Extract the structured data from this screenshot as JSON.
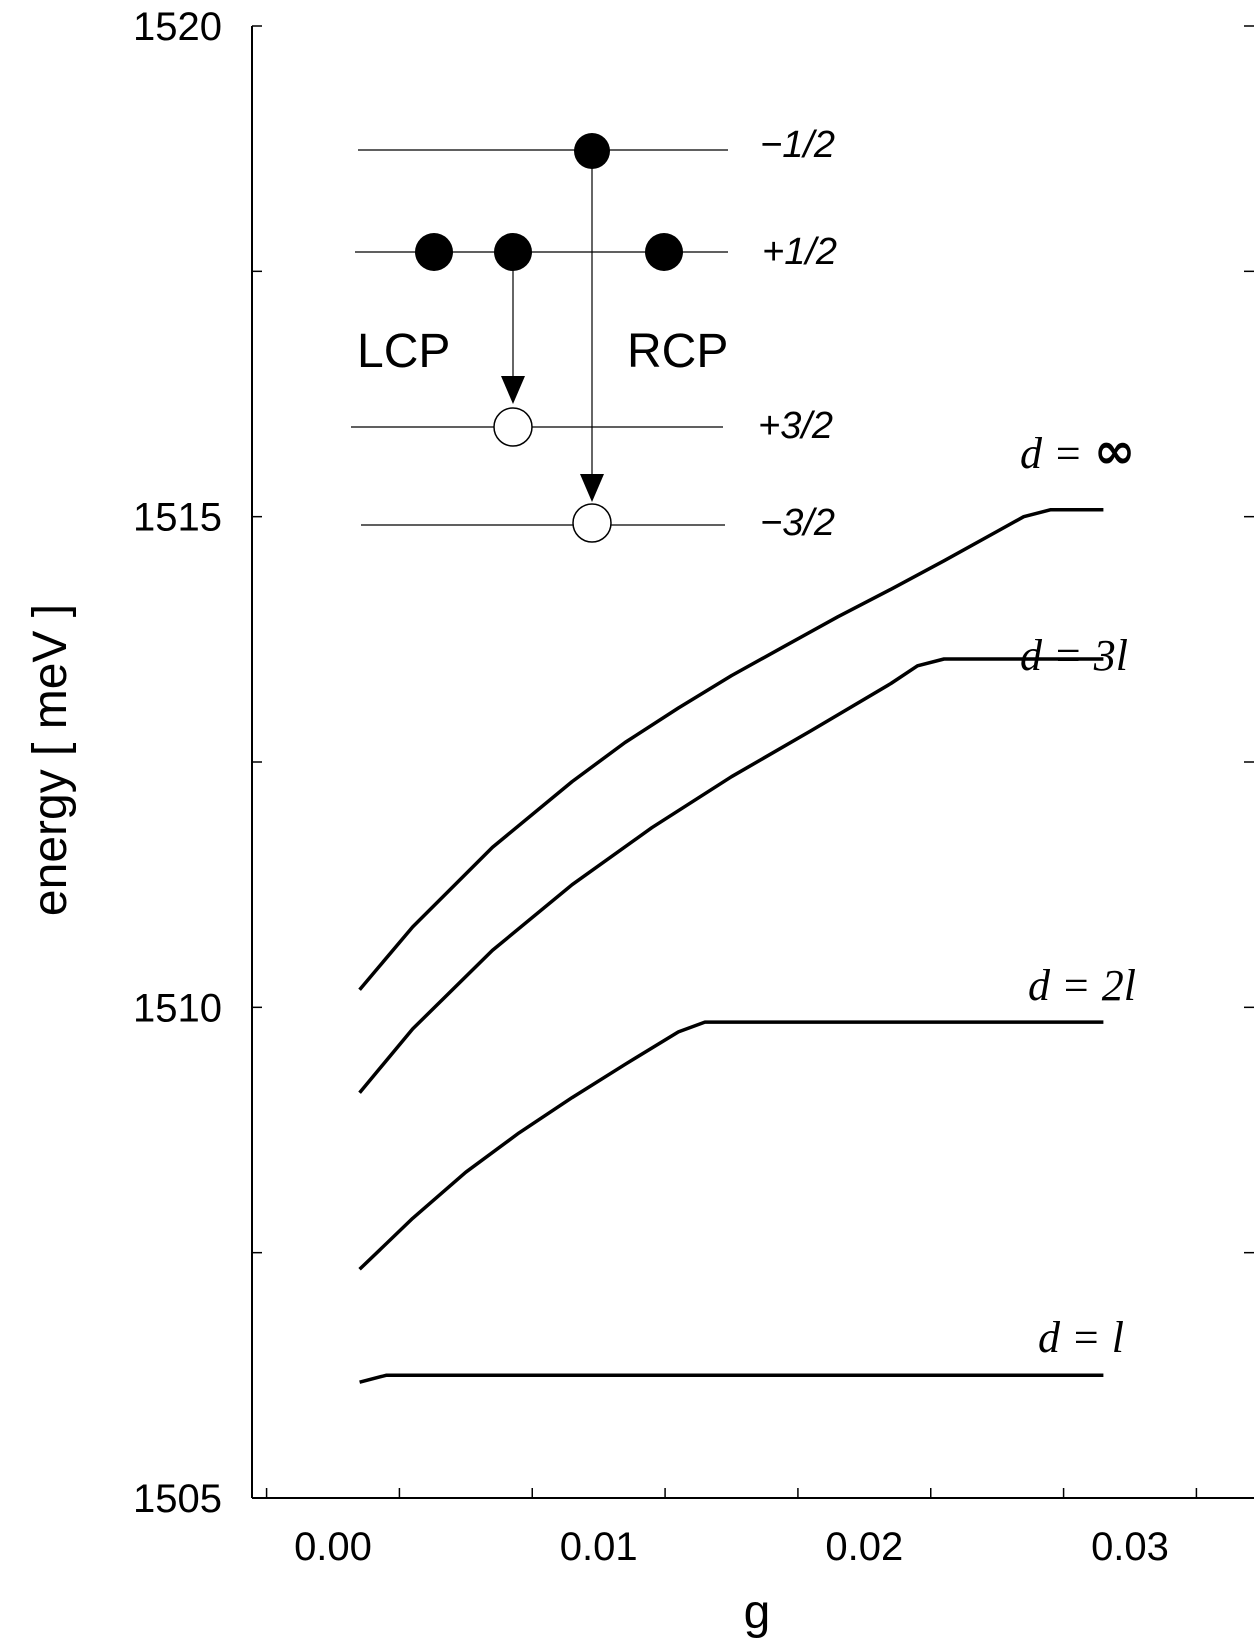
{
  "chart_data": {
    "type": "line",
    "xlabel": "g",
    "ylabel": "energy  [ meV ]",
    "xlim": [
      -0.003,
      0.035
    ],
    "ylim": [
      1505,
      1520
    ],
    "x_ticks": [
      "0.00",
      "0.01",
      "0.02",
      "0.03"
    ],
    "y_ticks": [
      "1505",
      "1510",
      "1515",
      "1520"
    ],
    "grid": false,
    "series": [
      {
        "name": "d = ∞",
        "label_prefix": "d = ",
        "label_value": "∞",
        "x": [
          0.001,
          0.003,
          0.006,
          0.009,
          0.011,
          0.013,
          0.015,
          0.017,
          0.019,
          0.021,
          0.023,
          0.025,
          0.026,
          0.027,
          0.029
        ],
        "y": [
          1510.18,
          1510.82,
          1511.63,
          1512.3,
          1512.7,
          1513.05,
          1513.38,
          1513.68,
          1513.98,
          1514.26,
          1514.55,
          1514.85,
          1515.0,
          1515.07,
          1515.07
        ]
      },
      {
        "name": "d = 3l",
        "label_prefix": "d = ",
        "label_value": "3l",
        "x": [
          0.001,
          0.003,
          0.006,
          0.009,
          0.012,
          0.015,
          0.018,
          0.021,
          0.022,
          0.023,
          0.029
        ],
        "y": [
          1509.13,
          1509.78,
          1510.58,
          1511.25,
          1511.83,
          1512.35,
          1512.82,
          1513.3,
          1513.48,
          1513.55,
          1513.55
        ]
      },
      {
        "name": "d = 2l",
        "label_prefix": "d = ",
        "label_value": "2l",
        "x": [
          0.001,
          0.003,
          0.005,
          0.007,
          0.009,
          0.011,
          0.013,
          0.014,
          0.029
        ],
        "y": [
          1507.33,
          1507.85,
          1508.32,
          1508.72,
          1509.08,
          1509.42,
          1509.75,
          1509.85,
          1509.85
        ]
      },
      {
        "name": "d = l",
        "label_prefix": "d = ",
        "label_value": "l",
        "x": [
          0.001,
          0.002,
          0.029
        ],
        "y": [
          1506.18,
          1506.25,
          1506.25
        ]
      }
    ],
    "inset": {
      "levels": [
        {
          "label": "−1/2"
        },
        {
          "label": "+1/2"
        },
        {
          "label": "+3/2"
        },
        {
          "label": "−3/2"
        }
      ],
      "transitions": [
        {
          "label": "LCP",
          "from": "+1/2",
          "to": "+3/2"
        },
        {
          "label": "RCP",
          "from": "−1/2",
          "to": "−3/2"
        }
      ]
    }
  }
}
